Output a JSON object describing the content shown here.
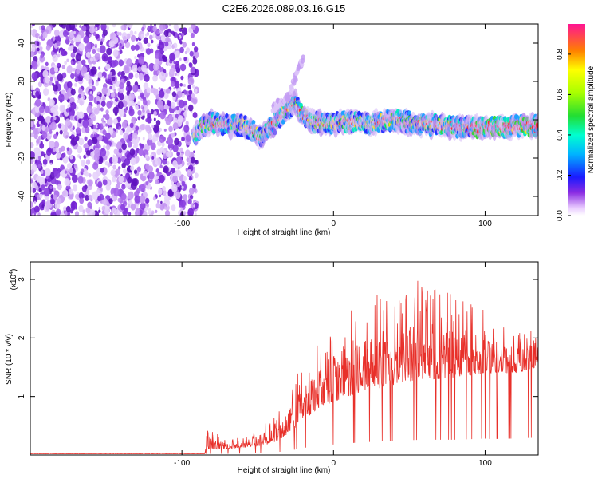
{
  "title": "C2E6.2026.089.03.16.G15",
  "colors": {
    "snr_line": "#e8302a",
    "noise_purple": "#7a1fd6",
    "frame": "#000000"
  },
  "chart_data": [
    {
      "name": "spectrogram",
      "type": "heatmap",
      "xlabel": "Height of straight line (km)",
      "ylabel": "Frequency (Hz)",
      "xlim": [
        -200,
        135
      ],
      "ylim": [
        -50,
        50
      ],
      "x_ticks": [
        -100,
        0,
        100
      ],
      "y_ticks": [
        -40,
        -20,
        0,
        20,
        40
      ],
      "noise_region_x": [
        -200,
        -92
      ],
      "ridge": [
        {
          "x": -92,
          "y": -10
        },
        {
          "x": -88,
          "y": -4
        },
        {
          "x": -80,
          "y": -1
        },
        {
          "x": -70,
          "y": -3
        },
        {
          "x": -60,
          "y": -3
        },
        {
          "x": -52,
          "y": -6
        },
        {
          "x": -48,
          "y": -10
        },
        {
          "x": -45,
          "y": -6
        },
        {
          "x": -40,
          "y": -3
        },
        {
          "x": -35,
          "y": 2
        },
        {
          "x": -30,
          "y": 6
        },
        {
          "x": -25,
          "y": 9
        },
        {
          "x": -22,
          "y": 4
        },
        {
          "x": -15,
          "y": -1
        },
        {
          "x": -5,
          "y": -2
        },
        {
          "x": 10,
          "y": -1
        },
        {
          "x": 25,
          "y": -2
        },
        {
          "x": 40,
          "y": 0
        },
        {
          "x": 55,
          "y": -2
        },
        {
          "x": 70,
          "y": -3
        },
        {
          "x": 90,
          "y": -4
        },
        {
          "x": 110,
          "y": -4
        },
        {
          "x": 125,
          "y": -3
        },
        {
          "x": 135,
          "y": -3
        }
      ],
      "branch": [
        {
          "x": -40,
          "y": 6
        },
        {
          "x": -30,
          "y": 12
        },
        {
          "x": -25,
          "y": 22
        },
        {
          "x": -20,
          "y": 32
        }
      ],
      "colorbar": {
        "label": "Normalized spectral amplitude",
        "min": 0.0,
        "max": 0.95,
        "ticks": [
          "0.0",
          "0.2",
          "0.4",
          "0.6",
          "0.8"
        ],
        "tick_values": [
          0.0,
          0.2,
          0.4,
          0.6,
          0.8
        ]
      }
    },
    {
      "name": "snr",
      "type": "line",
      "xlabel": "Height of straight line (km)",
      "ylabel": "SNR (10 * v/v)",
      "multiplier_label": "(x10",
      "multiplier_exp": "4",
      "multiplier_close": ")",
      "xlim": [
        -200,
        135
      ],
      "ylim": [
        0,
        3.3
      ],
      "x_ticks": [
        -100,
        0,
        100
      ],
      "y_ticks": [
        1,
        2,
        3
      ],
      "envelope": [
        {
          "x": -200,
          "base": 0.02,
          "amp": 0.01
        },
        {
          "x": -85,
          "base": 0.02,
          "amp": 0.01
        },
        {
          "x": -83,
          "base": 0.1,
          "amp": 0.4
        },
        {
          "x": -70,
          "base": 0.1,
          "amp": 0.15
        },
        {
          "x": -50,
          "base": 0.15,
          "amp": 0.3
        },
        {
          "x": -40,
          "base": 0.2,
          "amp": 0.45
        },
        {
          "x": -30,
          "base": 0.35,
          "amp": 0.7
        },
        {
          "x": -20,
          "base": 0.6,
          "amp": 1.0
        },
        {
          "x": -10,
          "base": 0.8,
          "amp": 1.3
        },
        {
          "x": 0,
          "base": 0.9,
          "amp": 1.5
        },
        {
          "x": 20,
          "base": 1.1,
          "amp": 1.6
        },
        {
          "x": 40,
          "base": 1.2,
          "amp": 1.6
        },
        {
          "x": 57,
          "base": 1.3,
          "amp": 1.7
        },
        {
          "x": 80,
          "base": 1.3,
          "amp": 1.5
        },
        {
          "x": 100,
          "base": 1.4,
          "amp": 1.1
        },
        {
          "x": 120,
          "base": 1.4,
          "amp": 0.8
        },
        {
          "x": 135,
          "base": 1.5,
          "amp": 0.6
        }
      ]
    }
  ]
}
